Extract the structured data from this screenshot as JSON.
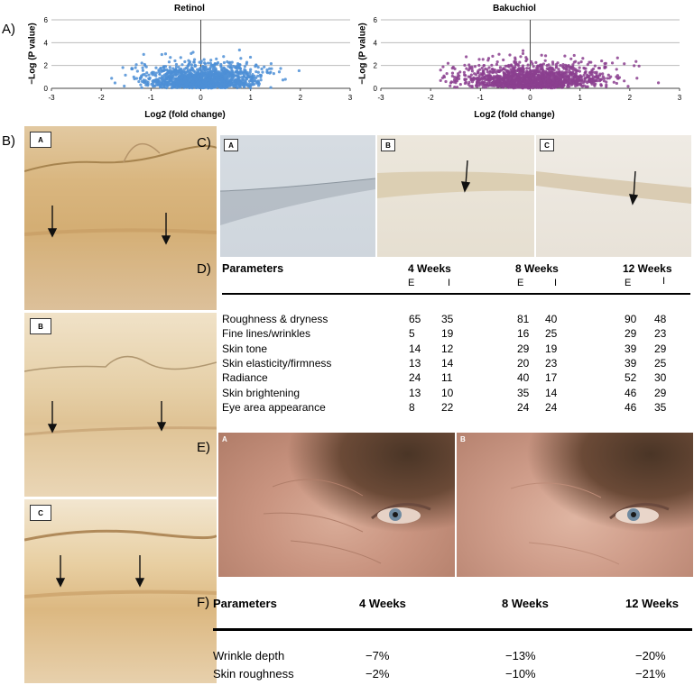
{
  "labels": {
    "a": "A)",
    "b": "B)",
    "c": "C)",
    "d": "D)",
    "e": "E)",
    "f": "F)"
  },
  "volcano": {
    "ylabel": "−Log (P value)",
    "xlabel": "Log2 (fold change)",
    "plots": [
      {
        "title": "Retinol",
        "color": "#4d8fd6"
      },
      {
        "title": "Bakuchiol",
        "color": "#8b3f8f"
      }
    ]
  },
  "chart_data": [
    {
      "type": "scatter",
      "title": "Retinol",
      "xlabel": "Log2 (fold change)",
      "ylabel": "−Log (P value)",
      "xlim": [
        -3,
        3
      ],
      "ylim": [
        0,
        6
      ],
      "xticks": [
        -3,
        -2,
        -1,
        0,
        1,
        2,
        3
      ],
      "yticks": [
        0,
        2,
        4,
        6
      ],
      "grid": "horizontal",
      "extent": {
        "x": [
          -1.9,
          2.6
        ],
        "y": [
          0,
          5.6
        ]
      }
    },
    {
      "type": "scatter",
      "title": "Bakuchiol",
      "xlabel": "Log2 (fold change)",
      "ylabel": "−Log (P value)",
      "xlim": [
        -3,
        3
      ],
      "ylim": [
        0,
        6
      ],
      "xticks": [
        -3,
        -2,
        -1,
        0,
        1,
        2,
        3
      ],
      "yticks": [
        0,
        2,
        4,
        6
      ],
      "grid": "horizontal",
      "extent": {
        "x": [
          -1.8,
          3.0
        ],
        "y": [
          0,
          5.6
        ]
      }
    }
  ],
  "panel_b": {
    "insets": [
      "A",
      "B",
      "C"
    ]
  },
  "panel_c": {
    "insets": [
      "A",
      "B",
      "C"
    ]
  },
  "table_d": {
    "header": "Parameters",
    "periods": [
      "4 Weeks",
      "8 Weeks",
      "12 Weeks"
    ],
    "sub": [
      "E",
      "I"
    ],
    "rows": [
      {
        "name": "Roughness & dryness",
        "v": [
          "65",
          "35",
          "81",
          "40",
          "90",
          "48"
        ]
      },
      {
        "name": "Fine lines/wrinkles",
        "v": [
          "5",
          "19",
          "16",
          "25",
          "29",
          "23"
        ]
      },
      {
        "name": "Skin tone",
        "v": [
          "14",
          "12",
          "29",
          "19",
          "39",
          "29"
        ]
      },
      {
        "name": "Skin elasticity/firmness",
        "v": [
          "13",
          "14",
          "20",
          "23",
          "39",
          "25"
        ]
      },
      {
        "name": "Radiance",
        "v": [
          "24",
          "11",
          "40",
          "17",
          "52",
          "30"
        ]
      },
      {
        "name": "Skin brightening",
        "v": [
          "13",
          "10",
          "35",
          "14",
          "46",
          "29"
        ]
      },
      {
        "name": "Eye area appearance",
        "v": [
          "8",
          "22",
          "24",
          "24",
          "46",
          "35"
        ]
      }
    ]
  },
  "panel_e": {
    "tags": [
      "A",
      "B"
    ]
  },
  "table_f": {
    "header": "Parameters",
    "periods": [
      "4 Weeks",
      "8 Weeks",
      "12 Weeks"
    ],
    "rows": [
      {
        "name": "Wrinkle depth",
        "v": [
          "−7%",
          "−13%",
          "−20%"
        ]
      },
      {
        "name": "Skin roughness",
        "v": [
          "−2%",
          "−10%",
          "−21%"
        ]
      }
    ]
  }
}
